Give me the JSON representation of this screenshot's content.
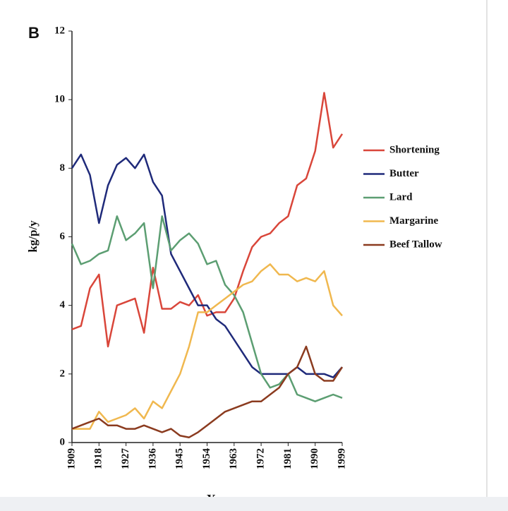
{
  "chart_data": {
    "type": "line",
    "panel_label": "B",
    "x_label": "Year",
    "y_label": "kg/p/y",
    "x": [
      1909,
      1912,
      1915,
      1918,
      1921,
      1924,
      1927,
      1930,
      1933,
      1936,
      1939,
      1942,
      1945,
      1948,
      1951,
      1954,
      1957,
      1960,
      1963,
      1966,
      1969,
      1972,
      1975,
      1978,
      1981,
      1984,
      1987,
      1990,
      1993,
      1996,
      1999
    ],
    "series": [
      {
        "name": "Shortening",
        "color": "#d9463a",
        "values": [
          3.3,
          3.4,
          4.5,
          4.9,
          2.8,
          4.0,
          4.1,
          4.2,
          3.2,
          5.1,
          3.9,
          3.9,
          4.1,
          4.0,
          4.3,
          3.7,
          3.8,
          3.8,
          4.2,
          5.0,
          5.7,
          6.0,
          6.1,
          6.4,
          6.6,
          7.5,
          7.7,
          8.5,
          10.2,
          8.6,
          9.0
        ]
      },
      {
        "name": "Butter",
        "color": "#1f2a7a",
        "values": [
          8.0,
          8.4,
          7.8,
          6.4,
          7.5,
          8.1,
          8.3,
          8.0,
          8.4,
          7.6,
          7.2,
          5.5,
          5.0,
          4.5,
          4.0,
          4.0,
          3.6,
          3.4,
          3.0,
          2.6,
          2.2,
          2.0,
          2.0,
          2.0,
          2.0,
          2.2,
          2.0,
          2.0,
          2.0,
          1.9,
          2.2
        ]
      },
      {
        "name": "Lard",
        "color": "#5c9e72",
        "values": [
          5.8,
          5.2,
          5.3,
          5.5,
          5.6,
          6.6,
          5.9,
          6.1,
          6.4,
          4.5,
          6.6,
          5.6,
          5.9,
          6.1,
          5.8,
          5.2,
          5.3,
          4.6,
          4.3,
          3.8,
          2.9,
          2.0,
          1.6,
          1.7,
          2.0,
          1.4,
          1.3,
          1.2,
          1.3,
          1.4,
          1.3
        ]
      },
      {
        "name": "Margarine",
        "color": "#f0b84f",
        "values": [
          0.4,
          0.4,
          0.4,
          0.9,
          0.6,
          0.7,
          0.8,
          1.0,
          0.7,
          1.2,
          1.0,
          1.5,
          2.0,
          2.8,
          3.8,
          3.8,
          4.0,
          4.2,
          4.4,
          4.6,
          4.7,
          5.0,
          5.2,
          4.9,
          4.9,
          4.7,
          4.8,
          4.7,
          5.0,
          4.0,
          3.7
        ]
      },
      {
        "name": "Beef Tallow",
        "color": "#8b3b1f",
        "values": [
          0.4,
          0.5,
          0.6,
          0.7,
          0.5,
          0.5,
          0.4,
          0.4,
          0.5,
          0.4,
          0.3,
          0.4,
          0.2,
          0.15,
          0.3,
          0.5,
          0.7,
          0.9,
          1.0,
          1.1,
          1.2,
          1.2,
          1.4,
          1.6,
          2.0,
          2.2,
          2.8,
          2.0,
          1.8,
          1.8,
          2.2
        ]
      }
    ],
    "xlim": [
      1909,
      1999
    ],
    "xticks": [
      1909,
      1918,
      1927,
      1936,
      1945,
      1954,
      1963,
      1972,
      1981,
      1990,
      1999
    ],
    "ylim": [
      0,
      12
    ],
    "yticks": [
      0,
      2,
      4,
      6,
      8,
      10,
      12
    ],
    "legend": "right"
  }
}
